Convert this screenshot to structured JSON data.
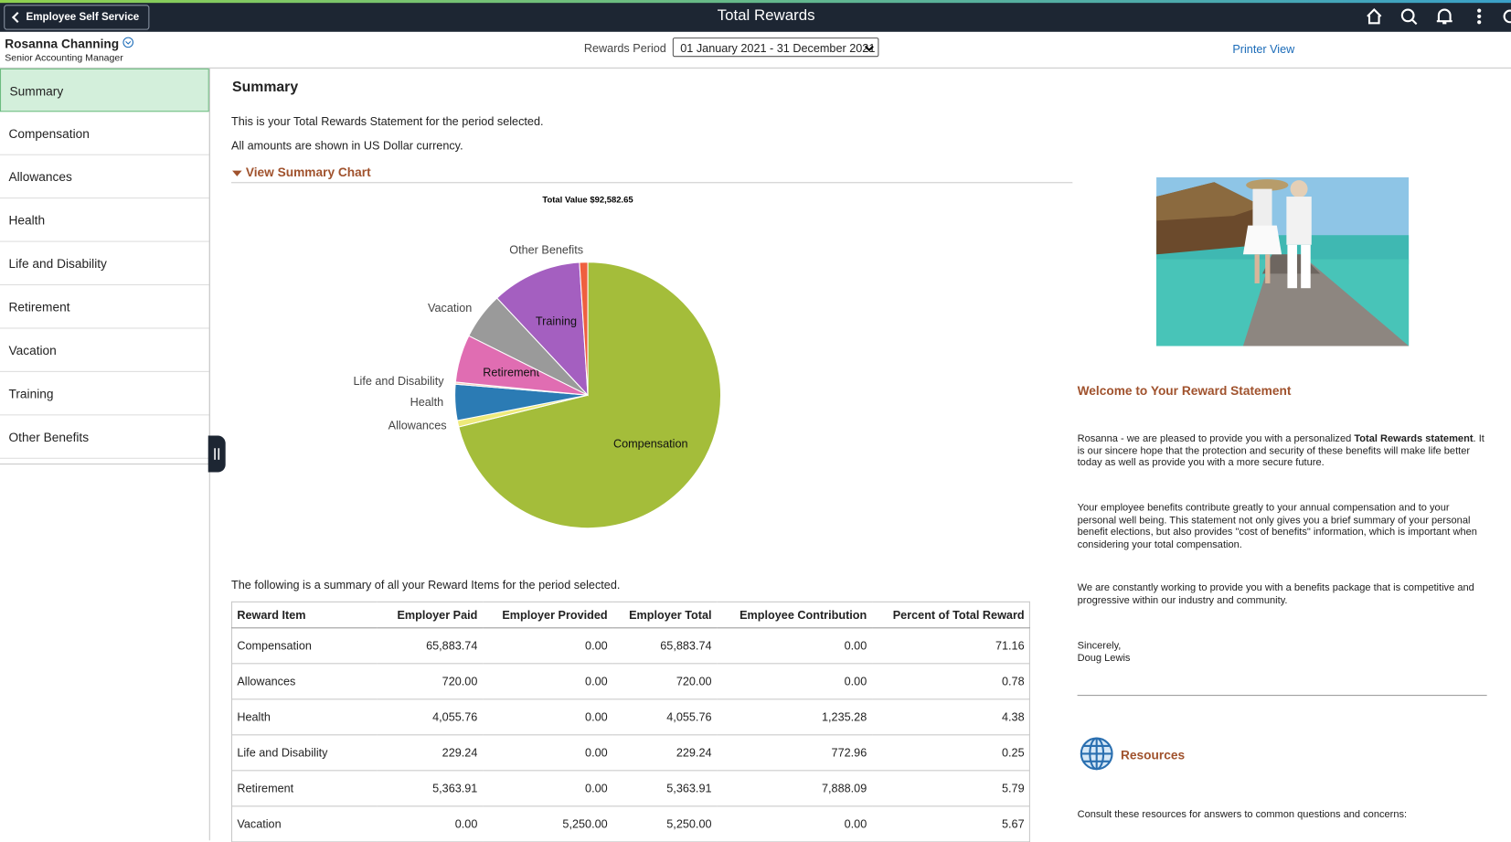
{
  "header": {
    "back_button": "Employee Self Service",
    "title": "Total Rewards"
  },
  "user": {
    "name": "Rosanna Channing",
    "job_title": "Senior Accounting Manager"
  },
  "rewards_period": {
    "label": "Rewards Period",
    "selected": "01 January 2021 - 31 December 2021"
  },
  "printer_view": "Printer View",
  "nav": [
    "Summary",
    "Compensation",
    "Allowances",
    "Health",
    "Life and Disability",
    "Retirement",
    "Vacation",
    "Training",
    "Other Benefits"
  ],
  "main": {
    "heading": "Summary",
    "intro": [
      "This is your Total Rewards Statement for the period selected.",
      "All amounts are shown in US Dollar currency."
    ],
    "chart_toggle": "View Summary Chart",
    "table_intro": "The following is a summary of all your Reward Items for the period selected."
  },
  "chart_data": {
    "type": "pie",
    "title": "Total Value $92,582.65",
    "categories": [
      "Compensation",
      "Allowances",
      "Health",
      "Life and Disability",
      "Retirement",
      "Vacation",
      "Training",
      "Other Benefits"
    ],
    "values": [
      71.16,
      0.78,
      4.38,
      0.25,
      5.79,
      5.67,
      10.97,
      1.0
    ],
    "colors": [
      "#a4bd3a",
      "#eeea7a",
      "#2b7bb4",
      "#f4c9b8",
      "#e06db2",
      "#9a9a9a",
      "#a45fc0",
      "#ef5f3f"
    ]
  },
  "table": {
    "columns": [
      "Reward Item",
      "Employer Paid",
      "Employer Provided",
      "Employer Total",
      "Employee Contribution",
      "Percent of Total Reward"
    ],
    "rows": [
      [
        "Compensation",
        "65,883.74",
        "0.00",
        "65,883.74",
        "0.00",
        "71.16"
      ],
      [
        "Allowances",
        "720.00",
        "0.00",
        "720.00",
        "0.00",
        "0.78"
      ],
      [
        "Health",
        "4,055.76",
        "0.00",
        "4,055.76",
        "1,235.28",
        "4.38"
      ],
      [
        "Life and Disability",
        "229.24",
        "0.00",
        "229.24",
        "772.96",
        "0.25"
      ],
      [
        "Retirement",
        "5,363.91",
        "0.00",
        "5,363.91",
        "7,888.09",
        "5.79"
      ],
      [
        "Vacation",
        "0.00",
        "5,250.00",
        "5,250.00",
        "0.00",
        "5.67"
      ]
    ]
  },
  "sidebar": {
    "welcome_title": "Welcome to Your Reward Statement",
    "paragraph1": {
      "before": "Rosanna - we are pleased to provide you with a personalized ",
      "bold": "Total Rewards statement",
      "after": ". It is our sincere hope that the protection and security of these benefits will make life better today as well as provide you with a more secure future."
    },
    "paragraphs": [
      "Your employee benefits contribute greatly to your annual compensation and to your personal well being. This statement not only gives you a brief summary of your personal benefit elections, but also provides \"cost of benefits\" information, which is important when considering your total compensation.",
      "We are constantly working to provide you with a benefits package that is competitive and progressive within our industry and community."
    ],
    "closing": [
      "Sincerely,",
      "Doug Lewis"
    ],
    "resources_title": "Resources",
    "resources_text": "Consult these resources for answers to common questions and concerns:"
  }
}
